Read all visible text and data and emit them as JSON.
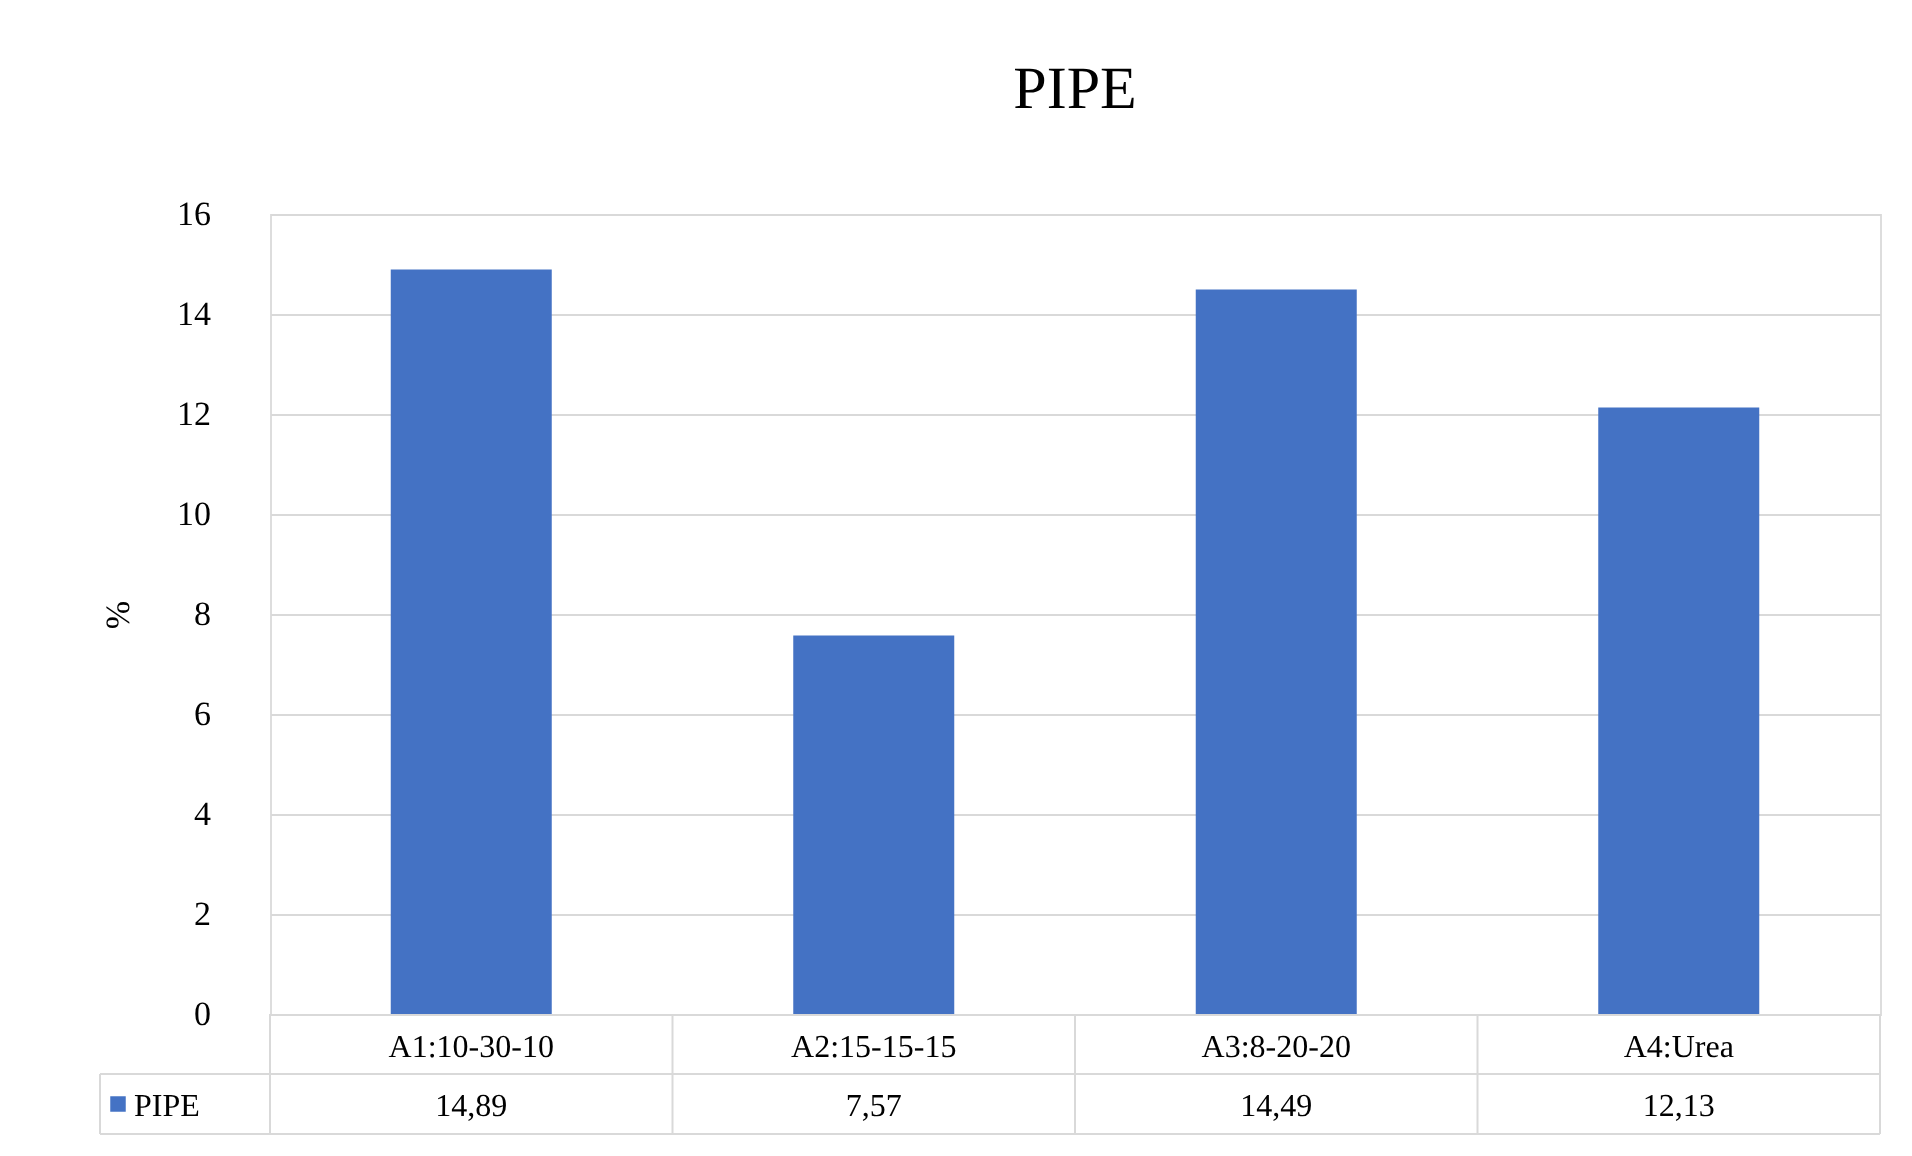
{
  "chart_data": {
    "type": "bar",
    "title": "PIPE",
    "ylabel": "%",
    "categories": [
      "A1:10-30-10",
      "A2:15-15-15",
      "A3:8-20-20",
      "A4:Urea"
    ],
    "series": [
      {
        "name": "PIPE",
        "color": "#4472c4",
        "values": [
          14.89,
          7.57,
          14.49,
          12.13
        ],
        "value_labels": [
          "14,89",
          "7,57",
          "14,49",
          "12,13"
        ]
      }
    ],
    "ylim": [
      0,
      16
    ],
    "yticks": [
      0,
      2,
      4,
      6,
      8,
      10,
      12,
      14,
      16
    ],
    "grid": "y",
    "legend": "bottom"
  }
}
